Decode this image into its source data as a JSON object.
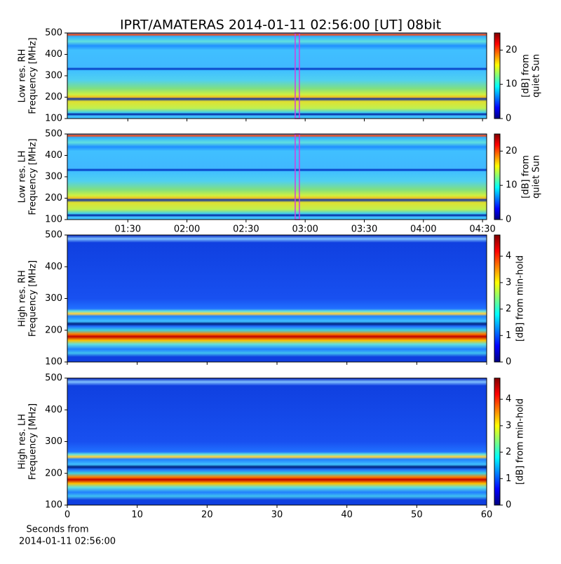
{
  "title": "IPRT/AMATERAS 2014-01-11 02:56:00 [UT]   08bit",
  "chart_data": [
    {
      "type": "heatmap",
      "ylabel": [
        "Low res. RH",
        "Frequency [MHz]"
      ],
      "xlim": [
        59.3,
        272.1
      ],
      "xticks": [
        90,
        120,
        150,
        180,
        210,
        240,
        270
      ],
      "ylim": [
        100,
        500
      ],
      "yticks": [
        100,
        200,
        300,
        400,
        500
      ],
      "marker_x": 176,
      "marker_color": "#d040e0",
      "colorbar": {
        "label": [
          "[dB] from",
          "quiet Sun"
        ],
        "lim": [
          0,
          25
        ],
        "ticks": [
          0,
          10,
          20
        ]
      }
    },
    {
      "type": "heatmap",
      "ylabel": [
        "Low res. LH",
        "Frequency [MHz]"
      ],
      "xlim": [
        59.3,
        272.1
      ],
      "xticks": [
        {
          "value": 90,
          "label": "01:30"
        },
        {
          "value": 120,
          "label": "02:00"
        },
        {
          "value": 150,
          "label": "02:30"
        },
        {
          "value": 180,
          "label": "03:00"
        },
        {
          "value": 210,
          "label": "03:30"
        },
        {
          "value": 240,
          "label": "04:00"
        },
        {
          "value": 270,
          "label": "04:30"
        }
      ],
      "ylim": [
        100,
        500
      ],
      "yticks": [
        100,
        200,
        300,
        400,
        500
      ],
      "marker_x": 176,
      "marker_color": "#d040e0",
      "colorbar": {
        "label": [
          "[dB] from",
          "quiet Sun"
        ],
        "lim": [
          0,
          25
        ],
        "ticks": [
          0,
          10,
          20
        ]
      }
    },
    {
      "type": "heatmap",
      "ylabel": [
        "High res. RH",
        "Frequency [MHz]"
      ],
      "xlim": [
        0,
        60
      ],
      "xticks": [
        0,
        10,
        20,
        30,
        40,
        50,
        60
      ],
      "ylim": [
        100,
        500
      ],
      "yticks": [
        100,
        200,
        300,
        400,
        500
      ],
      "colorbar": {
        "label": [
          "[dB] from min-hold"
        ],
        "lim": [
          0,
          4.8
        ],
        "ticks": [
          0,
          1,
          2,
          3,
          4
        ]
      }
    },
    {
      "type": "heatmap",
      "ylabel": [
        "High res. LH",
        "Frequency [MHz]"
      ],
      "xlim": [
        0,
        60
      ],
      "xticks": [
        0,
        10,
        20,
        30,
        40,
        50,
        60
      ],
      "ylim": [
        100,
        500
      ],
      "yticks": [
        100,
        200,
        300,
        400,
        500
      ],
      "xlabel": [
        "Seconds from",
        "2014-01-11 02:56:00"
      ],
      "colorbar": {
        "label": [
          "[dB] from min-hold"
        ],
        "lim": [
          0,
          4.8
        ],
        "ticks": [
          0,
          1,
          2,
          3,
          4
        ]
      }
    }
  ]
}
